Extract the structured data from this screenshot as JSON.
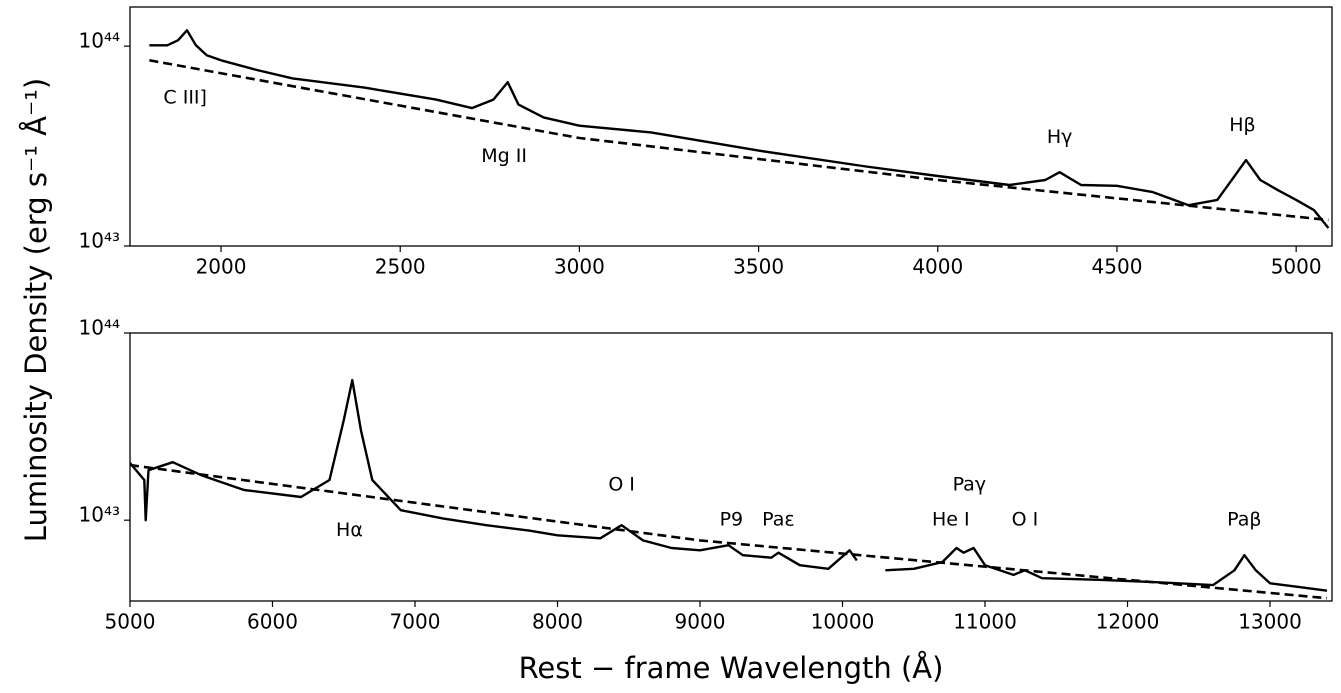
{
  "chart_data": [
    {
      "type": "line",
      "ylabel": "Luminosity Density  (erg s⁻¹ Å⁻¹)",
      "log_y": true,
      "xlim": [
        1746,
        5100
      ],
      "ylim": [
        1e+43,
        1.57e+44
      ],
      "xticks": [
        2000,
        2500,
        3000,
        3500,
        4000,
        4500,
        5000
      ],
      "yticks": [
        {
          "value": 1e+43,
          "label": "10⁴³"
        },
        {
          "value": 1e+44,
          "label": "10⁴⁴"
        }
      ],
      "series": [
        {
          "style": "solid",
          "color": "#000000",
          "x": [
            1800,
            1850,
            1880,
            1905,
            1930,
            1960,
            2000,
            2100,
            2200,
            2400,
            2600,
            2700,
            2760,
            2800,
            2830,
            2900,
            3000,
            3200,
            3500,
            3800,
            4000,
            4200,
            4300,
            4340,
            4400,
            4500,
            4600,
            4700,
            4780,
            4830,
            4860,
            4900,
            4950,
            5000,
            5050,
            5090
          ],
          "values": [
            1.01e+44,
            1.01e+44,
            1.07e+44,
            1.2e+44,
            1.01e+44,
            9e+43,
            8.5e+43,
            7.6e+43,
            6.9e+43,
            6.2e+43,
            5.4e+43,
            4.9e+43,
            5.4e+43,
            6.6e+43,
            5.1e+43,
            4.4e+43,
            4e+43,
            3.7e+43,
            3e+43,
            2.5e+43,
            2.24e+43,
            2.02e+43,
            2.14e+43,
            2.34e+43,
            2.02e+43,
            2e+43,
            1.86e+43,
            1.6e+43,
            1.7e+43,
            2.26e+43,
            2.69e+43,
            2.14e+43,
            1.9e+43,
            1.7e+43,
            1.51e+43,
            1.23e+43
          ]
        },
        {
          "style": "dashed",
          "color": "#000000",
          "x": [
            1800,
            3000,
            4000,
            5090
          ],
          "values": [
            8.5e+43,
            3.47e+43,
            2.14e+43,
            1.35e+43
          ]
        }
      ],
      "annotations": [
        {
          "text": "C III]",
          "x": 1900,
          "y": 5.5e+43
        },
        {
          "text": "Mg II",
          "x": 2790,
          "y": 2.8e+43
        },
        {
          "text": "Hγ",
          "x": 4340,
          "y": 3.5e+43
        },
        {
          "text": "Hβ",
          "x": 4850,
          "y": 4e+43
        }
      ]
    },
    {
      "type": "line",
      "xlabel": "Rest − frame Wavelength  (Å)",
      "log_y": true,
      "xlim": [
        5000,
        13435
      ],
      "ylim": [
        3.7e+42,
        1e+44
      ],
      "xticks": [
        5000,
        6000,
        7000,
        8000,
        9000,
        10000,
        11000,
        12000,
        13000
      ],
      "yticks": [
        {
          "value": 1e+43,
          "label": "10⁴³"
        },
        {
          "value": 1e+44,
          "label": "10⁴⁴"
        }
      ],
      "series": [
        {
          "style": "solid",
          "color": "#000000",
          "x": [
            5000,
            5100,
            5110,
            5130,
            5300,
            5500,
            5800,
            6200,
            6400,
            6500,
            6560,
            6620,
            6700,
            6900,
            7200,
            7500,
            7800,
            8000,
            8300,
            8450,
            8600,
            8800,
            9000,
            9200,
            9300,
            9500,
            9550,
            9700,
            9900,
            10050,
            10100,
            10200,
            10300,
            10500,
            10700,
            10800,
            10850,
            10920,
            11000,
            11200,
            11280,
            11400,
            11800,
            12200,
            12600,
            12750,
            12820,
            12900,
            13000,
            13200,
            13400
          ],
          "values": [
            2.02e+43,
            1.64e+43,
            1e+43,
            1.85e+43,
            2.04e+43,
            1.74e+43,
            1.45e+43,
            1.33e+43,
            1.64e+43,
            3.43e+43,
            5.6e+43,
            3.03e+43,
            1.64e+43,
            1.13e+43,
            1.02e+43,
            9.4e+42,
            8.8e+42,
            8.3e+42,
            8e+42,
            9.4e+42,
            7.8e+42,
            7.1e+42,
            6.9e+42,
            7.35e+42,
            6.5e+42,
            6.3e+42,
            6.7e+42,
            5.75e+42,
            5.5e+42,
            6.9e+42,
            6.1e+42,
            null,
            5.4e+42,
            5.5e+42,
            5.97e+42,
            7.1e+42,
            6.7e+42,
            7.1e+42,
            5.75e+42,
            5.1e+42,
            5.4e+42,
            4.9e+42,
            4.8e+42,
            4.66e+42,
            4.5e+42,
            5.4e+42,
            6.5e+42,
            5.4e+42,
            4.6e+42,
            4.4e+42,
            4.2e+42
          ]
        },
        {
          "style": "dashed",
          "color": "#000000",
          "x": [
            5000,
            9000,
            13400
          ],
          "values": [
            1.97e+43,
            7.8e+42,
            3.83e+42
          ]
        }
      ],
      "annotations": [
        {
          "text": "Hα",
          "x": 6540,
          "y": 8.8e+42
        },
        {
          "text": "O I",
          "x": 8450,
          "y": 1.54e+43
        },
        {
          "text": "P9",
          "x": 9220,
          "y": 1e+43
        },
        {
          "text": "Paε",
          "x": 9550,
          "y": 1e+43
        },
        {
          "text": "Paγ",
          "x": 10890,
          "y": 1.54e+43
        },
        {
          "text": "He I",
          "x": 10760,
          "y": 1e+43
        },
        {
          "text": "O I",
          "x": 11280,
          "y": 1e+43
        },
        {
          "text": "Paβ",
          "x": 12820,
          "y": 1e+43
        }
      ]
    }
  ]
}
